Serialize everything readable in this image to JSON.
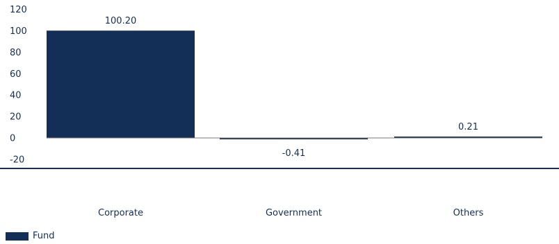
{
  "chart_data": {
    "type": "bar",
    "categories": [
      "Corporate",
      "Government",
      "Others"
    ],
    "series": [
      {
        "name": "Fund",
        "values": [
          100.2,
          -0.41,
          0.21
        ],
        "labels": [
          "100.20",
          "-0.41",
          "0.21"
        ],
        "color": "#132e57"
      }
    ],
    "yticks": [
      120,
      100,
      80,
      60,
      40,
      20,
      0,
      -20
    ],
    "ylim": [
      -20,
      120
    ],
    "grid": false,
    "legend": "bottom-left"
  },
  "legend": {
    "label": "Fund",
    "color": "#132e57"
  }
}
